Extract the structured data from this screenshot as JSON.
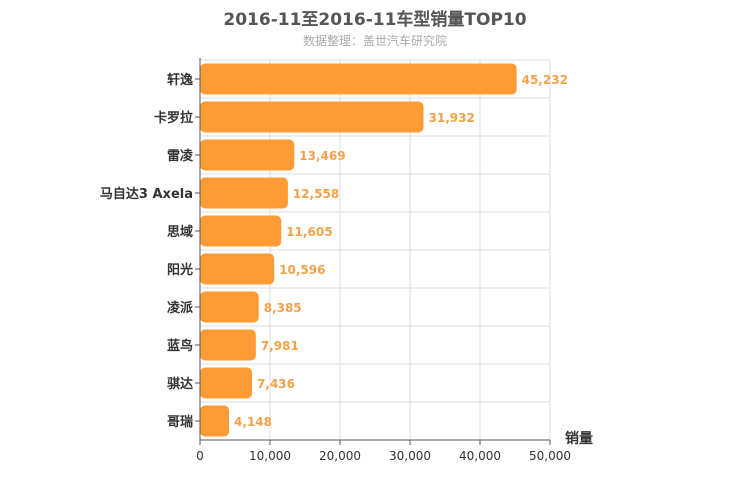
{
  "chart_data": {
    "type": "bar",
    "orientation": "horizontal",
    "title": "2016-11至2016-11车型销量TOP10",
    "subtitle": "数据整理：盖世汽车研究院",
    "categories": [
      "轩逸",
      "卡罗拉",
      "雷凌",
      "马自达3 Axela",
      "思域",
      "阳光",
      "凌派",
      "蓝鸟",
      "骐达",
      "哥瑞"
    ],
    "values": [
      45232,
      31932,
      13469,
      12558,
      11605,
      10596,
      8385,
      7981,
      7436,
      4148
    ],
    "value_labels": [
      "45,232",
      "31,932",
      "13,469",
      "12,558",
      "11,605",
      "10,596",
      "8,385",
      "7,981",
      "7,436",
      "4,148"
    ],
    "xlabel": "销量",
    "xlim": [
      0,
      50000
    ],
    "xticks": [
      0,
      10000,
      20000,
      30000,
      40000,
      50000
    ],
    "xtick_labels": [
      "0",
      "10,000",
      "20,000",
      "30,000",
      "40,000",
      "50,000"
    ],
    "grid": true,
    "bar_color": "#ff9b35",
    "label_color": "#f4a24a"
  }
}
